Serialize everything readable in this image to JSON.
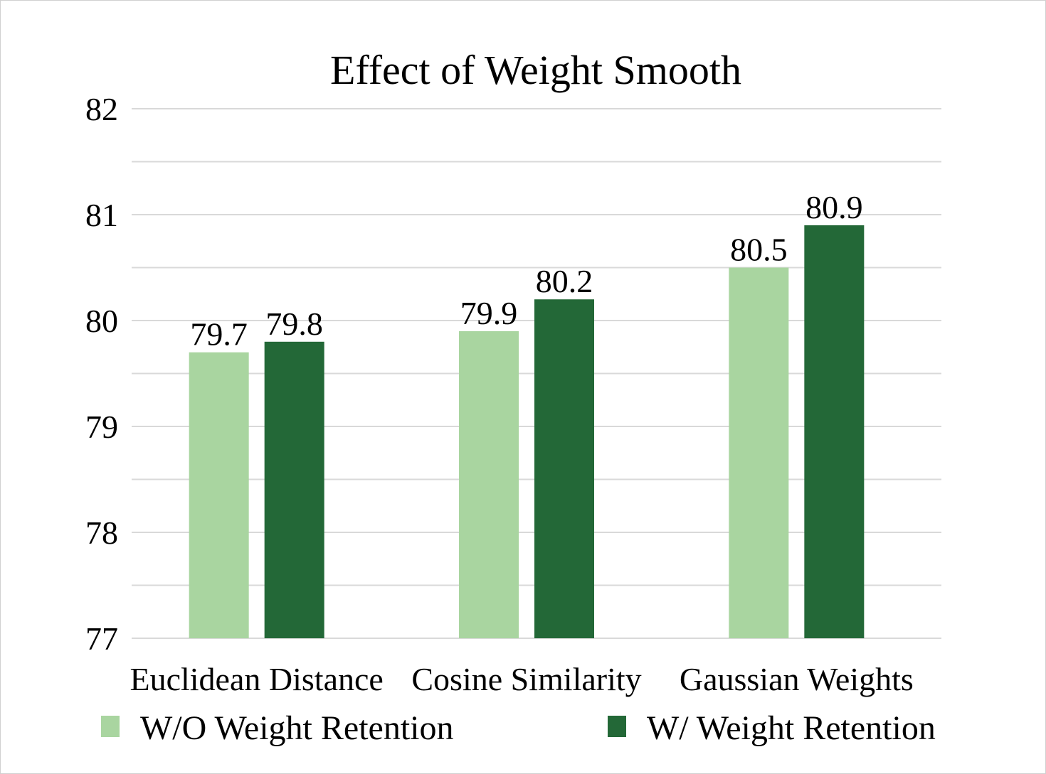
{
  "chart_data": {
    "type": "bar",
    "title": "Effect of Weight Smooth",
    "xlabel": "",
    "ylabel": "",
    "ylim": [
      77,
      82
    ],
    "yticks": [
      77,
      78,
      79,
      80,
      81,
      82
    ],
    "minor_grid_step": 0.5,
    "categories": [
      "Euclidean Distance",
      "Cosine Similarity",
      "Gaussian Weights"
    ],
    "series": [
      {
        "name": "W/O Weight Retention",
        "color": "#a9d5a0",
        "values": [
          79.7,
          79.9,
          80.5
        ],
        "labels": [
          "79.7",
          "79.9",
          "80.5"
        ]
      },
      {
        "name": "W/ Weight Retention",
        "color": "#236837",
        "values": [
          79.8,
          80.2,
          80.9
        ],
        "labels": [
          "79.8",
          "80.2",
          "80.9"
        ]
      }
    ],
    "legend_position": "bottom",
    "grid": true
  }
}
